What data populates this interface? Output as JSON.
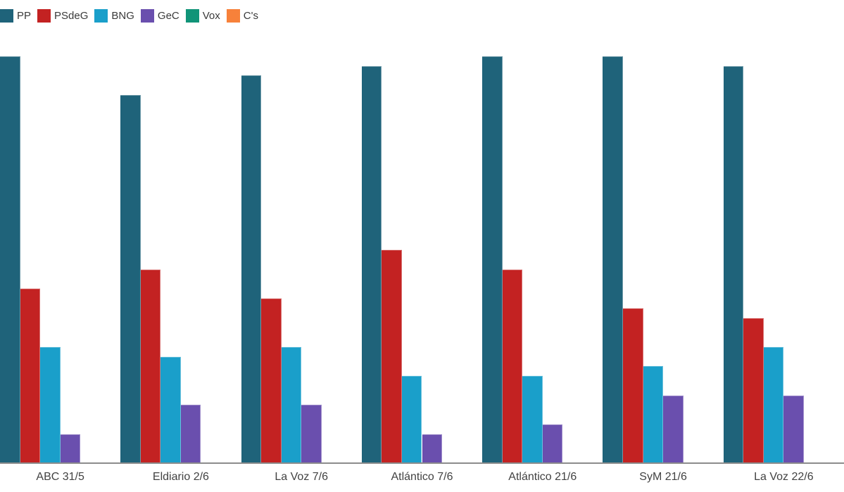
{
  "chart_data": {
    "type": "bar",
    "title": "",
    "xlabel": "",
    "ylabel": "",
    "categories": [
      "ABC 31/5",
      "Eldiario 2/6",
      "La Voz 7/6",
      "Atlántico 7/6",
      "Atlántico 21/6",
      "SyM 21/6",
      "La Voz 22/6"
    ],
    "series": [
      {
        "name": "PP",
        "color": "#1f637a",
        "values": [
          42,
          38,
          40,
          41,
          42,
          42,
          41
        ]
      },
      {
        "name": "PSdeG",
        "color": "#c32222",
        "values": [
          18,
          20,
          17,
          22,
          20,
          16,
          15
        ]
      },
      {
        "name": "BNG",
        "color": "#1a9fca",
        "values": [
          12,
          11,
          12,
          9,
          9,
          10,
          12
        ]
      },
      {
        "name": "GeC",
        "color": "#6a4fae",
        "values": [
          3,
          6,
          6,
          3,
          4,
          7,
          7
        ]
      },
      {
        "name": "Vox",
        "color": "#109478",
        "values": [
          0,
          0,
          0,
          0,
          0,
          0,
          0
        ]
      },
      {
        "name": "C's",
        "color": "#f7813a",
        "values": [
          0,
          0,
          0,
          0,
          0,
          0,
          0
        ]
      }
    ],
    "ylim": [
      0,
      47.8
    ],
    "grid": false,
    "legend_position": "top",
    "axis_line_color": "#8c8c8c",
    "x_label_color": "#424242",
    "legend_text_color": "#3a3a3a"
  }
}
